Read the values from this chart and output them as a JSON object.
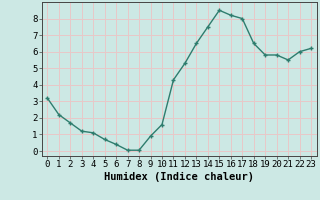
{
  "x": [
    0,
    1,
    2,
    3,
    4,
    5,
    6,
    7,
    8,
    9,
    10,
    11,
    12,
    13,
    14,
    15,
    16,
    17,
    18,
    19,
    20,
    21,
    22,
    23
  ],
  "y": [
    3.2,
    2.2,
    1.7,
    1.2,
    1.1,
    0.7,
    0.4,
    0.05,
    0.05,
    0.9,
    1.6,
    4.3,
    5.3,
    6.5,
    7.5,
    8.5,
    8.2,
    8.0,
    6.5,
    5.8,
    5.8,
    5.5,
    6.0,
    6.2
  ],
  "xlabel": "Humidex (Indice chaleur)",
  "ylim": [
    -0.3,
    9.0
  ],
  "xlim": [
    -0.5,
    23.5
  ],
  "line_color": "#2e7d6e",
  "marker": "+",
  "bg_color": "#cce8e4",
  "grid_color": "#e8c8c8",
  "tick_labels": [
    "0",
    "1",
    "2",
    "3",
    "4",
    "5",
    "6",
    "7",
    "8",
    "9",
    "10",
    "11",
    "12",
    "13",
    "14",
    "15",
    "16",
    "17",
    "18",
    "19",
    "20",
    "21",
    "22",
    "23"
  ],
  "yticks": [
    0,
    1,
    2,
    3,
    4,
    5,
    6,
    7,
    8
  ],
  "xlabel_fontsize": 7.5,
  "tick_fontsize": 6.5
}
